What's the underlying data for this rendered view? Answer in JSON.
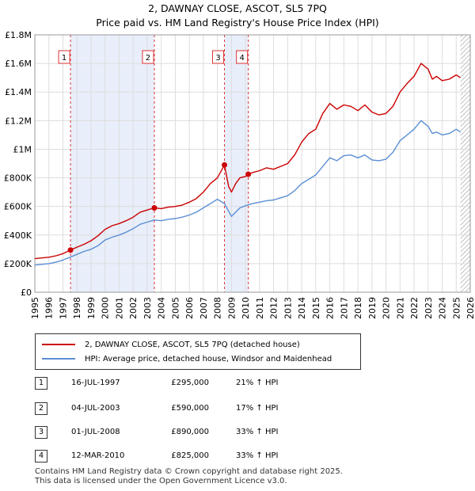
{
  "title_line1": "2, DAWNAY CLOSE, ASCOT, SL5 7PQ",
  "title_line2": "Price paid vs. HM Land Registry's House Price Index (HPI)",
  "legend": {
    "property_label": "2, DAWNAY CLOSE, ASCOT, SL5 7PQ (detached house)",
    "hpi_label": "HPI: Average price, detached house, Windsor and Maidenhead"
  },
  "transactions": [
    {
      "num": "1",
      "date": "16-JUL-1997",
      "price": "£295,000",
      "hpi": "21% ↑ HPI"
    },
    {
      "num": "2",
      "date": "04-JUL-2003",
      "price": "£590,000",
      "hpi": "17% ↑ HPI"
    },
    {
      "num": "3",
      "date": "01-JUL-2008",
      "price": "£890,000",
      "hpi": "33% ↑ HPI"
    },
    {
      "num": "4",
      "date": "12-MAR-2010",
      "price": "£825,000",
      "hpi": "33% ↑ HPI"
    }
  ],
  "footer_line1": "Contains HM Land Registry data © Crown copyright and database right 2025.",
  "footer_line2": "This data is licensed under the Open Government Licence v3.0.",
  "colors": {
    "property": "#cc0000",
    "hpi": "#5b8fd4",
    "shade": "#e8eefa",
    "vline": "#dd3333",
    "grid": "#dddddd"
  },
  "chart_data": {
    "type": "line",
    "title": "2, DAWNAY CLOSE, ASCOT, SL5 7PQ",
    "subtitle": "Price paid vs. HM Land Registry's House Price Index (HPI)",
    "xlabel": "",
    "ylabel": "",
    "xlim": [
      1995,
      2026
    ],
    "ylim": [
      0,
      1800000
    ],
    "x_ticks": [
      "1995",
      "1996",
      "1997",
      "1998",
      "1999",
      "2000",
      "2001",
      "2002",
      "2003",
      "2004",
      "2005",
      "2006",
      "2007",
      "2008",
      "2009",
      "2010",
      "2011",
      "2012",
      "2013",
      "2014",
      "2015",
      "2016",
      "2017",
      "2018",
      "2019",
      "2020",
      "2021",
      "2022",
      "2023",
      "2024",
      "2025",
      "2026"
    ],
    "y_ticks": [
      {
        "value": 0,
        "label": "£0"
      },
      {
        "value": 200000,
        "label": "£200K"
      },
      {
        "value": 400000,
        "label": "£400K"
      },
      {
        "value": 600000,
        "label": "£600K"
      },
      {
        "value": 800000,
        "label": "£800K"
      },
      {
        "value": 1000000,
        "label": "£1M"
      },
      {
        "value": 1200000,
        "label": "£1.2M"
      },
      {
        "value": 1400000,
        "label": "£1.4M"
      },
      {
        "value": 1600000,
        "label": "£1.6M"
      },
      {
        "value": 1800000,
        "label": "£1.8M"
      }
    ],
    "grid": true,
    "shaded_ranges": [
      [
        1997.54,
        2003.51
      ],
      [
        2008.5,
        2010.2
      ]
    ],
    "hatched_from": 2025.3,
    "sales": [
      {
        "label": "1",
        "x": 1997.54,
        "y": 295000
      },
      {
        "label": "2",
        "x": 2003.51,
        "y": 590000
      },
      {
        "label": "3",
        "x": 2008.5,
        "y": 890000
      },
      {
        "label": "4",
        "x": 2010.2,
        "y": 825000
      }
    ],
    "series": [
      {
        "name": "2, DAWNAY CLOSE, ASCOT, SL5 7PQ (detached house)",
        "x": [
          1995.0,
          1995.5,
          1996.0,
          1996.5,
          1997.0,
          1997.54,
          1998.0,
          1998.5,
          1999.0,
          1999.5,
          2000.0,
          2000.5,
          2001.0,
          2001.5,
          2002.0,
          2002.5,
          2003.0,
          2003.51,
          2004.0,
          2004.5,
          2005.0,
          2005.5,
          2006.0,
          2006.5,
          2007.0,
          2007.5,
          2008.0,
          2008.5,
          2008.8,
          2009.0,
          2009.3,
          2009.6,
          2010.0,
          2010.2,
          2010.6,
          2011.0,
          2011.5,
          2012.0,
          2012.5,
          2013.0,
          2013.5,
          2014.0,
          2014.5,
          2015.0,
          2015.5,
          2016.0,
          2016.5,
          2017.0,
          2017.5,
          2018.0,
          2018.5,
          2019.0,
          2019.5,
          2020.0,
          2020.5,
          2021.0,
          2021.5,
          2022.0,
          2022.5,
          2023.0,
          2023.3,
          2023.6,
          2024.0,
          2024.5,
          2025.0,
          2025.3
        ],
        "values": [
          235000,
          240000,
          245000,
          255000,
          270000,
          295000,
          315000,
          335000,
          360000,
          395000,
          440000,
          465000,
          480000,
          500000,
          525000,
          560000,
          575000,
          590000,
          585000,
          595000,
          600000,
          610000,
          630000,
          655000,
          700000,
          760000,
          800000,
          890000,
          740000,
          700000,
          760000,
          800000,
          810000,
          825000,
          840000,
          850000,
          870000,
          860000,
          880000,
          900000,
          960000,
          1050000,
          1110000,
          1140000,
          1250000,
          1320000,
          1280000,
          1310000,
          1300000,
          1270000,
          1310000,
          1260000,
          1240000,
          1250000,
          1300000,
          1400000,
          1460000,
          1510000,
          1600000,
          1560000,
          1490000,
          1510000,
          1480000,
          1490000,
          1520000,
          1500000
        ]
      },
      {
        "name": "HPI: Average price, detached house, Windsor and Maidenhead",
        "x": [
          1995.0,
          1995.5,
          1996.0,
          1996.5,
          1997.0,
          1997.5,
          1998.0,
          1998.5,
          1999.0,
          1999.5,
          2000.0,
          2000.5,
          2001.0,
          2001.5,
          2002.0,
          2002.5,
          2003.0,
          2003.5,
          2004.0,
          2004.5,
          2005.0,
          2005.5,
          2006.0,
          2006.5,
          2007.0,
          2007.5,
          2008.0,
          2008.5,
          2009.0,
          2009.3,
          2009.6,
          2010.0,
          2010.5,
          2011.0,
          2011.5,
          2012.0,
          2012.5,
          2013.0,
          2013.5,
          2014.0,
          2014.5,
          2015.0,
          2015.5,
          2016.0,
          2016.5,
          2017.0,
          2017.5,
          2018.0,
          2018.5,
          2019.0,
          2019.5,
          2020.0,
          2020.5,
          2021.0,
          2021.5,
          2022.0,
          2022.5,
          2023.0,
          2023.3,
          2023.6,
          2024.0,
          2024.5,
          2025.0,
          2025.3
        ],
        "values": [
          190000,
          195000,
          200000,
          210000,
          225000,
          245000,
          265000,
          285000,
          300000,
          325000,
          365000,
          385000,
          400000,
          420000,
          445000,
          475000,
          490000,
          505000,
          500000,
          510000,
          515000,
          525000,
          540000,
          560000,
          590000,
          620000,
          650000,
          620000,
          530000,
          560000,
          590000,
          605000,
          620000,
          630000,
          640000,
          645000,
          660000,
          675000,
          710000,
          760000,
          790000,
          820000,
          880000,
          940000,
          920000,
          955000,
          960000,
          940000,
          960000,
          925000,
          920000,
          930000,
          980000,
          1060000,
          1100000,
          1140000,
          1200000,
          1160000,
          1110000,
          1120000,
          1100000,
          1110000,
          1140000,
          1120000
        ]
      }
    ]
  }
}
